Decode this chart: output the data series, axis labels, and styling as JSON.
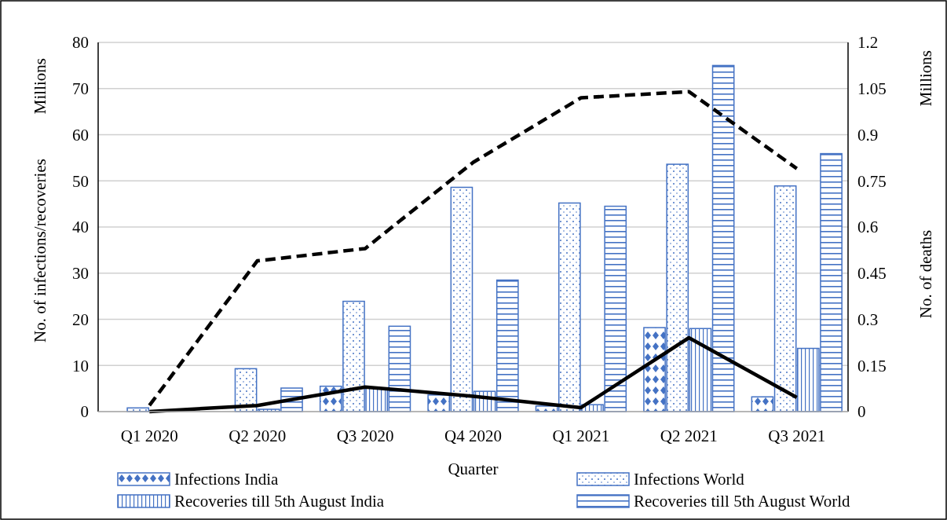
{
  "chart_data": {
    "type": "bar",
    "xlabel": "Quarter",
    "ylabel": "No. of infections/recoveries",
    "y2label": "No. of deaths",
    "annotations": [
      "Millions",
      "Millions"
    ],
    "categories": [
      "Q1 2020",
      "Q2 2020",
      "Q3 2020",
      "Q4 2020",
      "Q1 2021",
      "Q2 2021",
      "Q3 2021"
    ],
    "series": [
      {
        "name": "Infections India",
        "color": "#4472c4",
        "values": [
          0,
          null,
          5.5,
          3.6,
          1.2,
          18.2,
          3.2
        ]
      },
      {
        "name": "Infections World",
        "color": "#4472c4",
        "values": [
          0.8,
          9.3,
          23.9,
          48.6,
          45.2,
          53.6,
          48.9
        ]
      },
      {
        "name": "Recoveries till 5th August  India",
        "color": "#4472c4",
        "values": [
          0,
          0.5,
          5.1,
          4.4,
          1.5,
          18,
          13.7
        ]
      },
      {
        "name": "Recoveries till 5th August  World",
        "color": "#4472c4",
        "values": [
          0,
          5.1,
          18.5,
          28.5,
          44.5,
          75,
          55.9
        ]
      },
      {
        "type": "line",
        "axis": "y2",
        "color": "#000000",
        "line_style": "dashed",
        "values": [
          0.02,
          0.49,
          0.53,
          0.81,
          1.02,
          1.04,
          0.79
        ]
      },
      {
        "type": "line",
        "axis": "y2",
        "color": "#000000",
        "line_style": "solid",
        "values": [
          0,
          0.02,
          0.08,
          0.05,
          0.013,
          0.24,
          0.046
        ]
      }
    ],
    "ylim": [
      0,
      80
    ],
    "yticks": [
      0,
      10,
      20,
      30,
      40,
      50,
      60,
      70,
      80
    ],
    "y2lim": [
      0,
      1.2
    ],
    "y2ticks": [
      0,
      0.15,
      0.3,
      0.45,
      0.6,
      0.75,
      0.9,
      1.05,
      1.2
    ],
    "grid": "y",
    "legend": "bottom"
  }
}
